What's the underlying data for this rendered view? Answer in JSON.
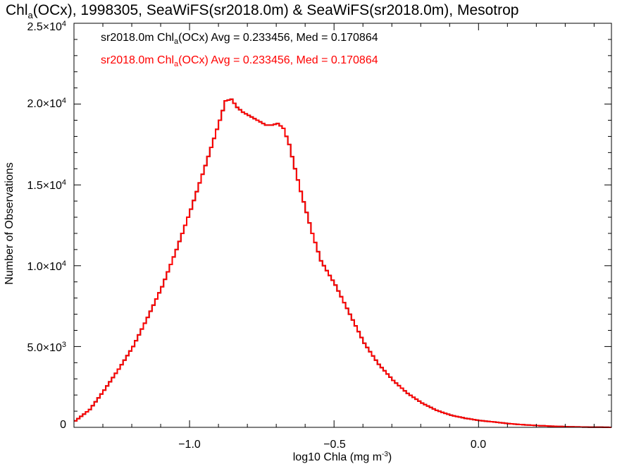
{
  "title": {
    "prefix": "Chl",
    "subscript": "a",
    "rest": "(OCx), 1998305, SeaWiFS(sr2018.0m) & SeaWiFS(sr2018.0m), Mesotrop"
  },
  "colors": {
    "series1": "#000000",
    "series2": "#ff0000",
    "axes": "#000000"
  },
  "chart_data": {
    "type": "line",
    "xlabel": {
      "text": "log10 Chla (mg m",
      "superscript": "-3",
      "suffix": ")"
    },
    "ylabel": "Number of Observations",
    "xlim": [
      -1.4,
      0.46
    ],
    "ylim": [
      0,
      25000
    ],
    "grid": false,
    "legend_placement": "top-left",
    "x_ticks": [
      {
        "value": -1.0,
        "label": "−1.0"
      },
      {
        "value": -0.5,
        "label": "−0.5"
      },
      {
        "value": 0.0,
        "label": "0.0"
      }
    ],
    "y_ticks": [
      {
        "value": 0,
        "mantissa": "0",
        "exponent": ""
      },
      {
        "value": 5000,
        "mantissa": "5.0×10",
        "exponent": "3"
      },
      {
        "value": 10000,
        "mantissa": "1.0×10",
        "exponent": "4"
      },
      {
        "value": 15000,
        "mantissa": "1.5×10",
        "exponent": "4"
      },
      {
        "value": 20000,
        "mantissa": "2.0×10",
        "exponent": "4"
      },
      {
        "value": 25000,
        "mantissa": "2.5×10",
        "exponent": "4"
      }
    ],
    "legend": [
      {
        "prefix": "sr2018.0m Chl",
        "subscript": "a",
        "text": "(OCx) Avg = 0.233456, Med = 0.170864",
        "color": "#000000"
      },
      {
        "prefix": "sr2018.0m Chl",
        "subscript": "a",
        "text": "(OCx) Avg = 0.233456, Med = 0.170864",
        "color": "#ff0000"
      }
    ],
    "series": [
      {
        "name": "sr2018.0m Chla(OCx)",
        "color": "#000000",
        "style": "step",
        "x": [
          -1.4,
          -1.35,
          -1.3,
          -1.25,
          -1.2,
          -1.15,
          -1.1,
          -1.05,
          -1.0,
          -0.95,
          -0.9,
          -0.88,
          -0.86,
          -0.84,
          -0.82,
          -0.8,
          -0.78,
          -0.76,
          -0.74,
          -0.72,
          -0.7,
          -0.68,
          -0.66,
          -0.64,
          -0.62,
          -0.6,
          -0.58,
          -0.55,
          -0.5,
          -0.45,
          -0.4,
          -0.35,
          -0.3,
          -0.25,
          -0.2,
          -0.15,
          -0.1,
          -0.05,
          0.0,
          0.05,
          0.1,
          0.15,
          0.2,
          0.25,
          0.3,
          0.35,
          0.4,
          0.46
        ],
        "y": [
          400,
          1100,
          2300,
          3600,
          5000,
          6800,
          8700,
          11000,
          13500,
          16200,
          19000,
          20200,
          20300,
          19800,
          19500,
          19300,
          19100,
          18900,
          18700,
          18700,
          18800,
          18500,
          17500,
          16000,
          14600,
          13300,
          12000,
          10300,
          8800,
          7000,
          5200,
          3900,
          2900,
          2100,
          1500,
          1050,
          750,
          560,
          420,
          330,
          230,
          160,
          110,
          70,
          40,
          20,
          10,
          0
        ]
      },
      {
        "name": "sr2018.0m Chla(OCx)",
        "color": "#ff0000",
        "style": "step",
        "x": [
          -1.4,
          -1.35,
          -1.3,
          -1.25,
          -1.2,
          -1.15,
          -1.1,
          -1.05,
          -1.0,
          -0.95,
          -0.9,
          -0.88,
          -0.86,
          -0.84,
          -0.82,
          -0.8,
          -0.78,
          -0.76,
          -0.74,
          -0.72,
          -0.7,
          -0.68,
          -0.66,
          -0.64,
          -0.62,
          -0.6,
          -0.58,
          -0.55,
          -0.5,
          -0.45,
          -0.4,
          -0.35,
          -0.3,
          -0.25,
          -0.2,
          -0.15,
          -0.1,
          -0.05,
          0.0,
          0.05,
          0.1,
          0.15,
          0.2,
          0.25,
          0.3,
          0.35,
          0.4,
          0.46
        ],
        "y": [
          400,
          1100,
          2300,
          3600,
          5000,
          6800,
          8700,
          11000,
          13500,
          16200,
          19000,
          20200,
          20300,
          19800,
          19500,
          19300,
          19100,
          18900,
          18700,
          18700,
          18800,
          18500,
          17500,
          16000,
          14600,
          13300,
          12000,
          10300,
          8800,
          7000,
          5200,
          3900,
          2900,
          2100,
          1500,
          1050,
          750,
          560,
          420,
          330,
          230,
          160,
          110,
          70,
          40,
          20,
          10,
          0
        ]
      }
    ]
  }
}
